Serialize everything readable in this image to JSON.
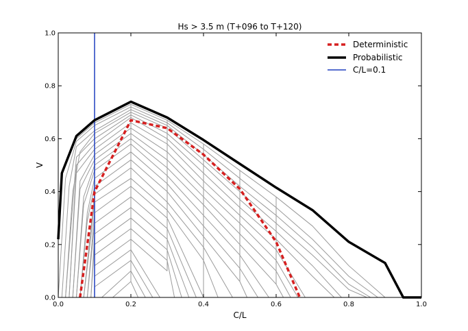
{
  "chart_data": {
    "type": "line",
    "title": "Hs >  3.5 m (T+096 to T+120)",
    "xlabel": "C/L",
    "ylabel": "V",
    "xlim": [
      0.0,
      1.0
    ],
    "ylim": [
      0.0,
      1.0
    ],
    "x_ticks": [
      "0.0",
      "0.2",
      "0.4",
      "0.6",
      "0.8",
      "1.0"
    ],
    "y_ticks": [
      "0.0",
      "0.2",
      "0.4",
      "0.6",
      "0.8",
      "1.0"
    ],
    "grid": false,
    "legend_position": "top-right",
    "series": [
      {
        "name": "Deterministic",
        "style": "dashed",
        "color": "#d62020",
        "x": [
          0.06,
          0.1,
          0.2,
          0.3,
          0.4,
          0.5,
          0.6,
          0.665
        ],
        "y": [
          0.0,
          0.4,
          0.67,
          0.64,
          0.54,
          0.41,
          0.21,
          0.0
        ]
      },
      {
        "name": "Probabilistic",
        "style": "solid-thick",
        "color": "#000000",
        "x": [
          0.0,
          0.01,
          0.05,
          0.1,
          0.2,
          0.3,
          0.4,
          0.5,
          0.6,
          0.7,
          0.8,
          0.9,
          0.95,
          1.0
        ],
        "y": [
          0.22,
          0.47,
          0.61,
          0.67,
          0.74,
          0.68,
          0.595,
          0.505,
          0.415,
          0.33,
          0.21,
          0.13,
          0.0,
          0.0
        ]
      },
      {
        "name": "C/L=0.1",
        "style": "vertical-line",
        "color": "#1f3fbf",
        "x": [
          0.1,
          0.1
        ],
        "y": [
          0.0,
          1.0
        ]
      }
    ],
    "ensemble_members": [
      {
        "x": [
          0.0,
          0.01,
          0.05,
          0.1,
          0.2,
          0.3,
          0.4,
          0.5,
          0.6,
          0.7,
          0.8,
          0.9
        ],
        "y": [
          0.22,
          0.47,
          0.6,
          0.66,
          0.73,
          0.67,
          0.58,
          0.48,
          0.38,
          0.27,
          0.12,
          0.0
        ]
      },
      {
        "x": [
          0.0,
          0.02,
          0.05,
          0.1,
          0.2,
          0.3,
          0.4,
          0.5,
          0.6,
          0.7,
          0.8,
          0.88
        ],
        "y": [
          0.0,
          0.45,
          0.59,
          0.65,
          0.72,
          0.66,
          0.56,
          0.45,
          0.34,
          0.22,
          0.08,
          0.0
        ]
      },
      {
        "x": [
          0.01,
          0.03,
          0.05,
          0.1,
          0.2,
          0.3,
          0.4,
          0.5,
          0.6,
          0.7,
          0.8,
          0.86
        ],
        "y": [
          0.0,
          0.42,
          0.57,
          0.63,
          0.71,
          0.65,
          0.54,
          0.42,
          0.31,
          0.19,
          0.05,
          0.0
        ]
      },
      {
        "x": [
          0.02,
          0.04,
          0.06,
          0.1,
          0.2,
          0.3,
          0.4,
          0.5,
          0.6,
          0.7,
          0.8,
          0.85
        ],
        "y": [
          0.0,
          0.4,
          0.55,
          0.62,
          0.7,
          0.64,
          0.52,
          0.4,
          0.28,
          0.16,
          0.03,
          0.0
        ]
      },
      {
        "x": [
          0.02,
          0.05,
          0.1,
          0.2,
          0.3,
          0.4,
          0.5,
          0.6,
          0.7,
          0.78
        ],
        "y": [
          0.0,
          0.53,
          0.6,
          0.69,
          0.62,
          0.5,
          0.37,
          0.25,
          0.12,
          0.0
        ]
      },
      {
        "x": [
          0.03,
          0.05,
          0.1,
          0.2,
          0.3,
          0.4,
          0.5,
          0.6,
          0.7,
          0.76
        ],
        "y": [
          0.0,
          0.5,
          0.58,
          0.68,
          0.6,
          0.47,
          0.34,
          0.22,
          0.08,
          0.0
        ]
      },
      {
        "x": [
          0.03,
          0.05,
          0.1,
          0.2,
          0.3,
          0.4,
          0.5,
          0.6,
          0.68
        ],
        "y": [
          0.0,
          0.47,
          0.56,
          0.66,
          0.58,
          0.44,
          0.31,
          0.18,
          0.0
        ]
      },
      {
        "x": [
          0.04,
          0.06,
          0.1,
          0.2,
          0.3,
          0.4,
          0.5,
          0.6,
          0.66
        ],
        "y": [
          0.0,
          0.44,
          0.54,
          0.64,
          0.55,
          0.41,
          0.28,
          0.14,
          0.0
        ]
      },
      {
        "x": [
          0.04,
          0.06,
          0.1,
          0.2,
          0.3,
          0.4,
          0.5,
          0.6,
          0.64
        ],
        "y": [
          0.0,
          0.41,
          0.52,
          0.62,
          0.52,
          0.38,
          0.24,
          0.1,
          0.0
        ]
      },
      {
        "x": [
          0.05,
          0.07,
          0.1,
          0.2,
          0.3,
          0.4,
          0.5,
          0.6,
          0.62
        ],
        "y": [
          0.0,
          0.38,
          0.5,
          0.6,
          0.49,
          0.35,
          0.2,
          0.05,
          0.0
        ]
      },
      {
        "x": [
          0.05,
          0.07,
          0.1,
          0.2,
          0.3,
          0.4,
          0.5,
          0.58
        ],
        "y": [
          0.0,
          0.35,
          0.48,
          0.58,
          0.46,
          0.31,
          0.16,
          0.0
        ]
      },
      {
        "x": [
          0.06,
          0.08,
          0.1,
          0.2,
          0.3,
          0.4,
          0.5,
          0.55
        ],
        "y": [
          0.0,
          0.32,
          0.45,
          0.55,
          0.43,
          0.27,
          0.11,
          0.0
        ]
      },
      {
        "x": [
          0.06,
          0.08,
          0.1,
          0.2,
          0.3,
          0.4,
          0.5,
          0.52
        ],
        "y": [
          0.0,
          0.29,
          0.42,
          0.52,
          0.4,
          0.23,
          0.06,
          0.0
        ]
      },
      {
        "x": [
          0.07,
          0.09,
          0.1,
          0.2,
          0.3,
          0.4,
          0.48
        ],
        "y": [
          0.0,
          0.26,
          0.39,
          0.49,
          0.36,
          0.19,
          0.0
        ]
      },
      {
        "x": [
          0.07,
          0.09,
          0.1,
          0.2,
          0.3,
          0.4,
          0.44
        ],
        "y": [
          0.0,
          0.23,
          0.36,
          0.45,
          0.33,
          0.14,
          0.0
        ]
      },
      {
        "x": [
          0.08,
          0.1,
          0.2,
          0.3,
          0.4
        ],
        "y": [
          0.0,
          0.32,
          0.42,
          0.3,
          0.0
        ]
      },
      {
        "x": [
          0.08,
          0.1,
          0.2,
          0.3,
          0.38
        ],
        "y": [
          0.0,
          0.28,
          0.38,
          0.26,
          0.0
        ]
      },
      {
        "x": [
          0.09,
          0.1,
          0.2,
          0.3,
          0.36
        ],
        "y": [
          0.0,
          0.24,
          0.34,
          0.22,
          0.0
        ]
      },
      {
        "x": [
          0.09,
          0.1,
          0.2,
          0.3,
          0.34
        ],
        "y": [
          0.0,
          0.2,
          0.3,
          0.18,
          0.0
        ]
      },
      {
        "x": [
          0.1,
          0.2,
          0.3,
          0.32
        ],
        "y": [
          0.16,
          0.26,
          0.14,
          0.0
        ]
      },
      {
        "x": [
          0.1,
          0.2,
          0.3
        ],
        "y": [
          0.12,
          0.22,
          0.1
        ]
      },
      {
        "x": [
          0.1,
          0.2,
          0.28
        ],
        "y": [
          0.08,
          0.18,
          0.0
        ]
      },
      {
        "x": [
          0.1,
          0.2,
          0.26
        ],
        "y": [
          0.04,
          0.14,
          0.0
        ]
      },
      {
        "x": [
          0.12,
          0.2,
          0.24
        ],
        "y": [
          0.0,
          0.1,
          0.0
        ]
      },
      {
        "x": [
          0.15,
          0.2,
          0.22
        ],
        "y": [
          0.0,
          0.06,
          0.0
        ]
      }
    ]
  }
}
